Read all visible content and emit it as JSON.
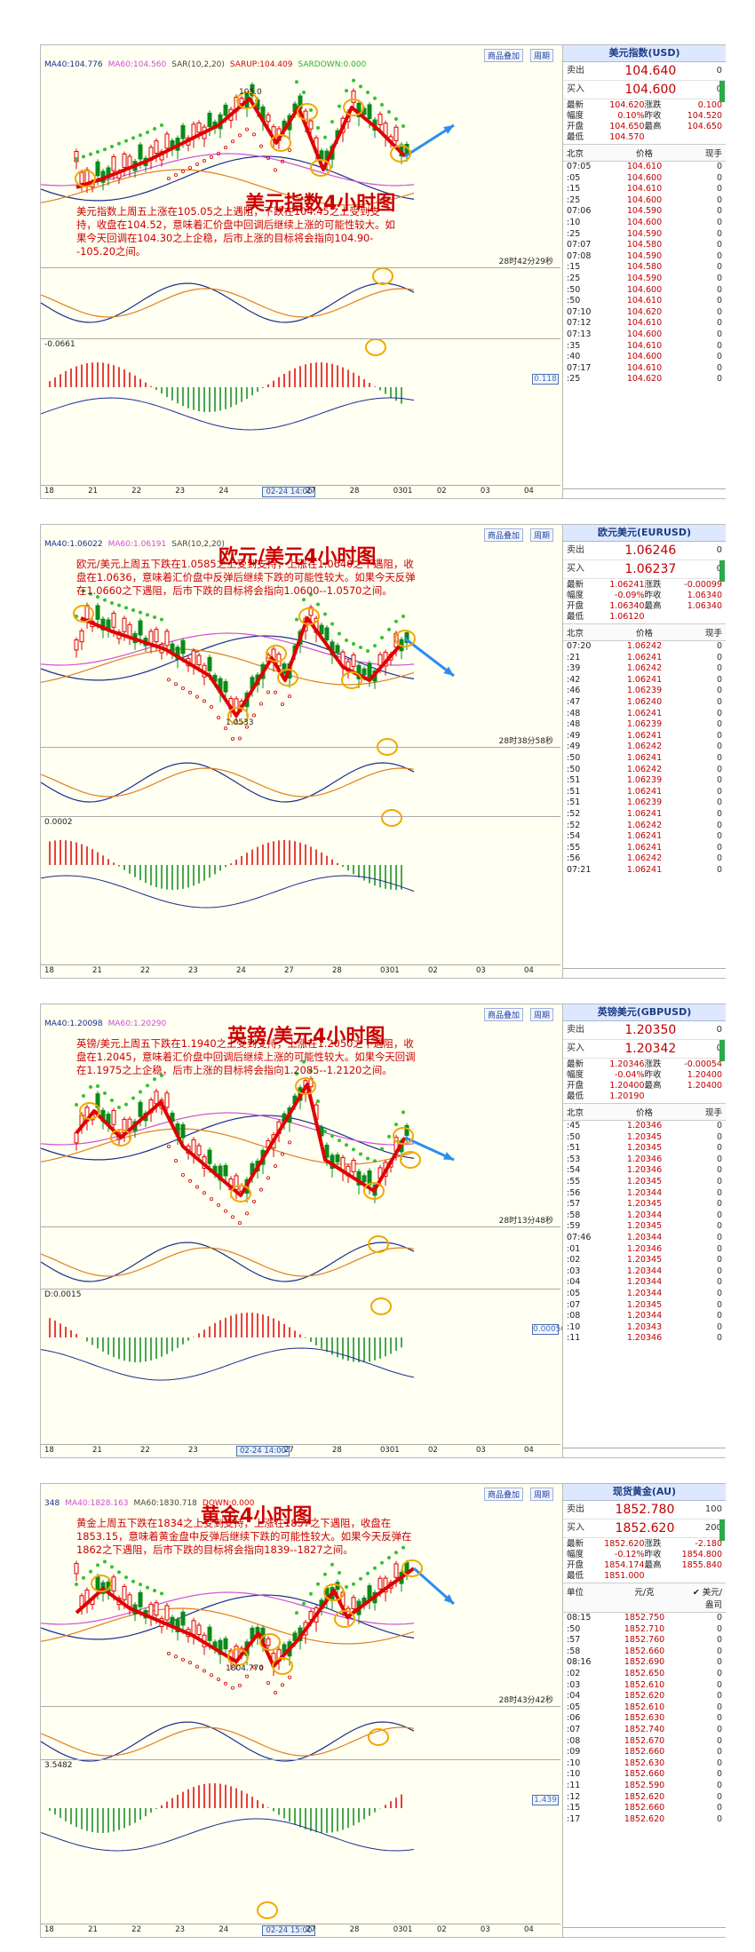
{
  "panels": [
    {
      "title": "美元指数4小时图",
      "description": "美元指数上周五上涨在105.05之上遇阻，下跌在104.45之上受到支持，收盘在104.52，意味着汇价盘中回调后继续上涨的可能性较大。如果今天回调在104.30之上企稳，后市上涨的目标将会指向104.90--105.20之间。",
      "indicators": [
        "MA40:104.776",
        "MA60:104.560",
        "SAR(10,2,20)",
        "SARUP:104.409",
        "SARDOWN:0.000"
      ],
      "price_label": "105.0",
      "timer": "28时42分29秒",
      "macd_label": "-0.0661",
      "val_box": "0.118",
      "x_ticks": [
        "18",
        "21",
        "22",
        "23",
        "24",
        "02-24 14:00",
        "27",
        "28",
        "0301",
        "02",
        "03",
        "04"
      ],
      "side": {
        "name": "美元指数(USD)",
        "sell_label": "卖出",
        "sell": "104.640",
        "sell_vol": "0",
        "buy_label": "买入",
        "buy": "104.600",
        "buy_vol": "0",
        "stats": [
          [
            "最新",
            "104.620"
          ],
          [
            "涨跌",
            "0.100"
          ],
          [
            "幅度",
            "0.10%"
          ],
          [
            "昨收",
            "104.520"
          ],
          [
            "开盘",
            "104.650"
          ],
          [
            "最高",
            "104.650"
          ],
          [
            "最低",
            "104.570"
          ],
          [
            "",
            ""
          ]
        ],
        "tick_headers": [
          "北京",
          "价格",
          "现手"
        ],
        "ticks": [
          [
            "07:05",
            "104.610",
            "0"
          ],
          [
            ":05",
            "104.600",
            "0"
          ],
          [
            ":15",
            "104.610",
            "0"
          ],
          [
            ":25",
            "104.600",
            "0"
          ],
          [
            "07:06",
            "104.590",
            "0"
          ],
          [
            ":10",
            "104.600",
            "0"
          ],
          [
            ":25",
            "104.590",
            "0"
          ],
          [
            "07:07",
            "104.580",
            "0"
          ],
          [
            "07:08",
            "104.590",
            "0"
          ],
          [
            ":15",
            "104.580",
            "0"
          ],
          [
            ":25",
            "104.590",
            "0"
          ],
          [
            ":50",
            "104.600",
            "0"
          ],
          [
            ":50",
            "104.610",
            "0"
          ],
          [
            "07:10",
            "104.620",
            "0"
          ],
          [
            "07:12",
            "104.610",
            "0"
          ],
          [
            "07:13",
            "104.600",
            "0"
          ],
          [
            ":35",
            "104.610",
            "0"
          ],
          [
            ":40",
            "104.600",
            "0"
          ],
          [
            "07:17",
            "104.610",
            "0"
          ],
          [
            ":25",
            "104.620",
            "0"
          ]
        ]
      }
    },
    {
      "title": "欧元/美元4小时图",
      "description": "欧元/美元上周五下跌在1.0585之上受到支持，上涨在1.0640之下遇阻，收盘在1.0636，意味着汇价盘中反弹后继续下跌的可能性较大。如果今天反弹在1.0660之下遇阻，后市下跌的目标将会指向1.0600--1.0570之间。",
      "indicators": [
        "MA40:1.06022",
        "MA60:1.06191",
        "SAR(10,2,20)"
      ],
      "price_label": "1.0533",
      "timer": "28时38分58秒",
      "macd_label": "0.0002",
      "val_box": "",
      "x_ticks": [
        "18",
        "21",
        "22",
        "23",
        "24",
        "27",
        "28",
        "0301",
        "02",
        "03",
        "04"
      ],
      "side": {
        "name": "欧元美元(EURUSD)",
        "sell_label": "卖出",
        "sell": "1.06246",
        "sell_vol": "0",
        "buy_label": "买入",
        "buy": "1.06237",
        "buy_vol": "0",
        "stats": [
          [
            "最新",
            "1.06241"
          ],
          [
            "涨跌",
            "-0.00099"
          ],
          [
            "幅度",
            "-0.09%"
          ],
          [
            "昨收",
            "1.06340"
          ],
          [
            "开盘",
            "1.06340"
          ],
          [
            "最高",
            "1.06340"
          ],
          [
            "最低",
            "1.06120"
          ],
          [
            "",
            ""
          ]
        ],
        "tick_headers": [
          "北京",
          "价格",
          "现手"
        ],
        "ticks": [
          [
            "07:20",
            "1.06242",
            "0"
          ],
          [
            ":21",
            "1.06241",
            "0"
          ],
          [
            ":39",
            "1.06242",
            "0"
          ],
          [
            ":42",
            "1.06241",
            "0"
          ],
          [
            ":46",
            "1.06239",
            "0"
          ],
          [
            ":47",
            "1.06240",
            "0"
          ],
          [
            ":48",
            "1.06241",
            "0"
          ],
          [
            ":48",
            "1.06239",
            "0"
          ],
          [
            ":49",
            "1.06241",
            "0"
          ],
          [
            ":49",
            "1.06242",
            "0"
          ],
          [
            ":50",
            "1.06241",
            "0"
          ],
          [
            ":50",
            "1.06242",
            "0"
          ],
          [
            ":51",
            "1.06239",
            "0"
          ],
          [
            ":51",
            "1.06241",
            "0"
          ],
          [
            ":51",
            "1.06239",
            "0"
          ],
          [
            ":52",
            "1.06241",
            "0"
          ],
          [
            ":52",
            "1.06242",
            "0"
          ],
          [
            ":54",
            "1.06241",
            "0"
          ],
          [
            ":55",
            "1.06241",
            "0"
          ],
          [
            ":56",
            "1.06242",
            "0"
          ],
          [
            "07:21",
            "1.06241",
            "0"
          ]
        ]
      }
    },
    {
      "title": "英镑/美元4小时图",
      "description": "英镑/美元上周五下跌在1.1940之上受到支持，上涨在1.2050之下遇阻，收盘在1.2045，意味着汇价盘中回调后继续上涨的可能性较大。如果今天回调在1.1975之上企稳，后市上涨的目标将会指向1.2085--1.2120之间。",
      "indicators": [
        "MA40:1.20098",
        "MA60:1.20290"
      ],
      "price_label": "",
      "timer": "28时13分48秒",
      "macd_label": "D:0.0015",
      "val_box": "0.00050",
      "x_ticks": [
        "18",
        "21",
        "22",
        "23",
        "02-24 14:00",
        "27",
        "28",
        "0301",
        "02",
        "03",
        "04"
      ],
      "side": {
        "name": "英镑美元(GBPUSD)",
        "sell_label": "卖出",
        "sell": "1.20350",
        "sell_vol": "0",
        "buy_label": "买入",
        "buy": "1.20342",
        "buy_vol": "0",
        "stats": [
          [
            "最新",
            "1.20346"
          ],
          [
            "涨跌",
            "-0.00054"
          ],
          [
            "幅度",
            "-0.04%"
          ],
          [
            "昨收",
            "1.20400"
          ],
          [
            "开盘",
            "1.20400"
          ],
          [
            "最高",
            "1.20400"
          ],
          [
            "最低",
            "1.20190"
          ],
          [
            "",
            ""
          ]
        ],
        "tick_headers": [
          "北京",
          "价格",
          "现手"
        ],
        "ticks": [
          [
            ":45",
            "1.20346",
            "0"
          ],
          [
            ":50",
            "1.20345",
            "0"
          ],
          [
            ":51",
            "1.20345",
            "0"
          ],
          [
            ":53",
            "1.20346",
            "0"
          ],
          [
            ":54",
            "1.20346",
            "0"
          ],
          [
            ":55",
            "1.20345",
            "0"
          ],
          [
            ":56",
            "1.20344",
            "0"
          ],
          [
            ":57",
            "1.20345",
            "0"
          ],
          [
            ":58",
            "1.20344",
            "0"
          ],
          [
            ":59",
            "1.20345",
            "0"
          ],
          [
            "07:46",
            "1.20344",
            "0"
          ],
          [
            ":01",
            "1.20346",
            "0"
          ],
          [
            ":02",
            "1.20345",
            "0"
          ],
          [
            ":03",
            "1.20344",
            "0"
          ],
          [
            ":04",
            "1.20344",
            "0"
          ],
          [
            ":05",
            "1.20344",
            "0"
          ],
          [
            ":07",
            "1.20345",
            "0"
          ],
          [
            ":08",
            "1.20344",
            "0"
          ],
          [
            ":10",
            "1.20343",
            "0"
          ],
          [
            ":11",
            "1.20346",
            "0"
          ]
        ]
      }
    },
    {
      "title": "黄金4小时图",
      "description": "黄金上周五下跌在1834之上受到支持，上涨在1857之下遇阻，收盘在1853.15，意味着黄金盘中反弹后继续下跌的可能性较大。如果今天反弹在1862之下遇阻，后市下跌的目标将会指向1839--1827之间。",
      "indicators": [
        "348",
        "MA40:1828.163",
        "MA60:1830.718",
        "DOWN:0.000"
      ],
      "price_label": "1804.770",
      "timer": "28时43分42秒",
      "macd_label": "3.5482",
      "val_box": "1.439",
      "x_ticks": [
        "18",
        "21",
        "22",
        "23",
        "24",
        "02-24 15:00",
        "27",
        "28",
        "0301",
        "02",
        "03",
        "04"
      ],
      "side": {
        "name": "现货黄金(AU)",
        "sell_label": "卖出",
        "sell": "1852.780",
        "sell_vol": "100",
        "buy_label": "买入",
        "buy": "1852.620",
        "buy_vol": "200",
        "stats": [
          [
            "最新",
            "1852.620"
          ],
          [
            "涨跌",
            "-2.180"
          ],
          [
            "幅度",
            "-0.12%"
          ],
          [
            "昨收",
            "1854.800"
          ],
          [
            "开盘",
            "1854.174"
          ],
          [
            "最高",
            "1855.840"
          ],
          [
            "最低",
            "1851.000"
          ],
          [
            "",
            ""
          ]
        ],
        "tick_headers": [
          "单位",
          "元/克",
          "✔ 美元/盎司"
        ],
        "ticks": [
          [
            "08:15",
            "1852.750",
            "0"
          ],
          [
            ":50",
            "1852.710",
            "0"
          ],
          [
            ":57",
            "1852.760",
            "0"
          ],
          [
            ":58",
            "1852.660",
            "0"
          ],
          [
            "08:16",
            "1852.690",
            "0"
          ],
          [
            ":02",
            "1852.650",
            "0"
          ],
          [
            ":03",
            "1852.610",
            "0"
          ],
          [
            ":04",
            "1852.620",
            "0"
          ],
          [
            ":05",
            "1852.610",
            "0"
          ],
          [
            ":06",
            "1852.630",
            "0"
          ],
          [
            ":07",
            "1852.740",
            "0"
          ],
          [
            ":08",
            "1852.670",
            "0"
          ],
          [
            ":09",
            "1852.660",
            "0"
          ],
          [
            ":10",
            "1852.630",
            "0"
          ],
          [
            ":10",
            "1852.660",
            "0"
          ],
          [
            ":11",
            "1852.590",
            "0"
          ],
          [
            ":12",
            "1852.620",
            "0"
          ],
          [
            ":15",
            "1852.660",
            "0"
          ],
          [
            ":17",
            "1852.620",
            "0"
          ]
        ]
      }
    }
  ],
  "toolbar": {
    "overlay": "商品叠加",
    "period": "周期"
  },
  "colors": {
    "up": "#e00000",
    "down": "#0a8a1a",
    "sar_up": "#d40000",
    "sar_down": "#36c036",
    "arrow": "#2b8df0",
    "ring": "#f0a800"
  },
  "chart_data": [
    {
      "type": "line",
      "title": "美元指数4小时图",
      "series": [
        {
          "values": [
            104.2,
            103.95,
            104.3,
            104.7,
            105.05,
            104.3,
            104.6,
            104.2,
            104.95,
            104.5,
            104.35
          ]
        }
      ]
    },
    {
      "type": "line",
      "title": "欧元/美元4小时图",
      "series": [
        {
          "values": [
            1.0705,
            1.068,
            1.06,
            1.0533,
            1.062,
            1.0595,
            1.07,
            1.066,
            1.059,
            1.064,
            1.066
          ]
        }
      ]
    },
    {
      "type": "line",
      "title": "英镑/美元4小时图",
      "series": [
        {
          "values": [
            1.2,
            1.206,
            1.199,
            1.212,
            1.193,
            1.212,
            1.2,
            1.194,
            1.205,
            1.2
          ]
        }
      ]
    },
    {
      "type": "line",
      "title": "黄金4小时图",
      "series": [
        {
          "values": [
            1832,
            1842,
            1832,
            1806,
            1813,
            1808,
            1838,
            1830,
            1855,
            1862
          ]
        }
      ]
    }
  ]
}
